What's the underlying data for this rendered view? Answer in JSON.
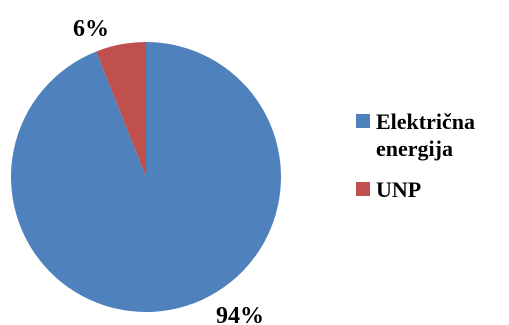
{
  "chart_data": {
    "type": "pie",
    "slices": [
      {
        "name": "Električna energija",
        "value": 94,
        "label": "94%",
        "color": "#4F81BD"
      },
      {
        "name": "UNP",
        "value": 6,
        "label": "6%",
        "color": "#C0504D"
      }
    ],
    "legend_position": "right",
    "start_angle": "top, clockwise"
  }
}
